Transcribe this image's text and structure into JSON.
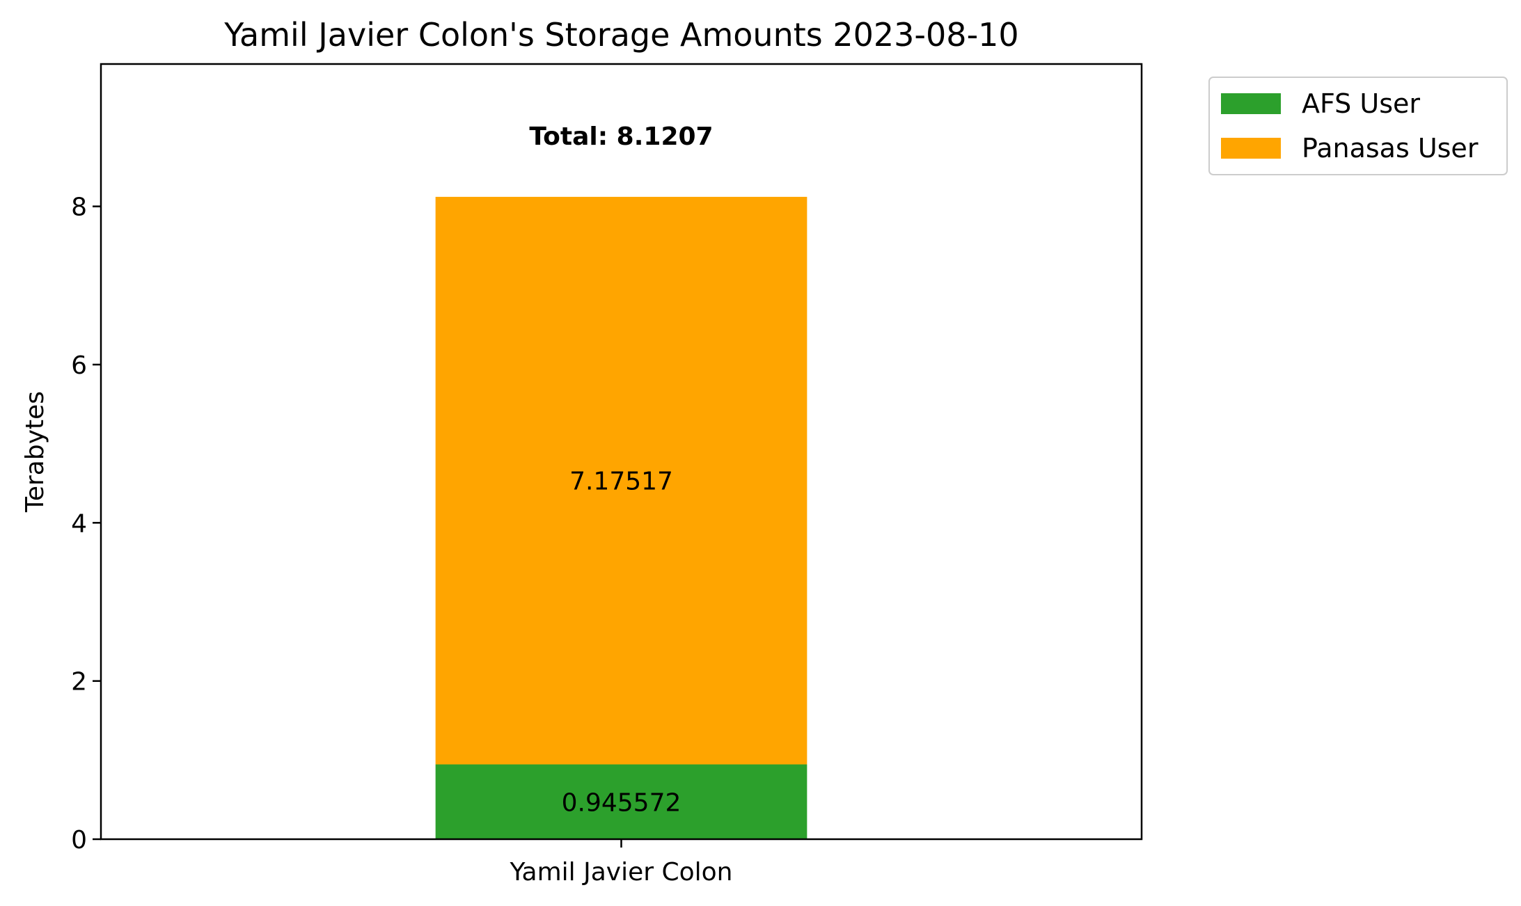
{
  "chart_data": {
    "type": "bar",
    "stacked": true,
    "title": "Yamil Javier Colon's Storage Amounts 2023-08-10",
    "xlabel": "",
    "ylabel": "Terabytes",
    "ylim": [
      0,
      9.8
    ],
    "yticks": [
      0,
      2,
      4,
      6,
      8
    ],
    "categories": [
      "Yamil Javier Colon"
    ],
    "series": [
      {
        "name": "AFS User",
        "values": [
          0.945572
        ],
        "color": "#2ca02c",
        "label": "0.945572"
      },
      {
        "name": "Panasas User",
        "values": [
          7.17517
        ],
        "color": "#ffa500",
        "label": "7.17517"
      }
    ],
    "total": {
      "value": 8.1207,
      "label": "Total: 8.1207"
    },
    "legend_position": "outside top-right",
    "grid": false
  }
}
